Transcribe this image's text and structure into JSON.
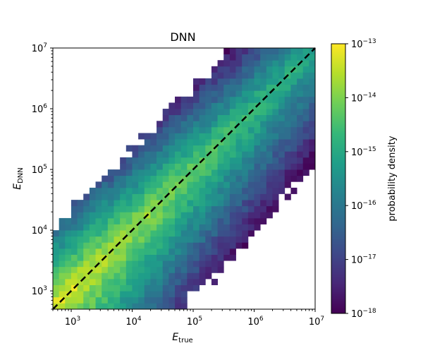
{
  "chart_data": {
    "type": "heatmap",
    "title": "DNN",
    "xlabel": {
      "main": "E",
      "sub": "true"
    },
    "ylabel": {
      "main": "E",
      "sub": "DNN"
    },
    "scale": "log",
    "xlim": [
      500,
      10000000
    ],
    "ylim": [
      500,
      10000000
    ],
    "x_ticks": [
      {
        "value": 1000,
        "base": "10",
        "exp": "3"
      },
      {
        "value": 10000,
        "base": "10",
        "exp": "4"
      },
      {
        "value": 100000,
        "base": "10",
        "exp": "5"
      },
      {
        "value": 1000000,
        "base": "10",
        "exp": "6"
      },
      {
        "value": 10000000,
        "base": "10",
        "exp": "7"
      }
    ],
    "y_ticks": [
      {
        "value": 1000,
        "base": "10",
        "exp": "3"
      },
      {
        "value": 10000,
        "base": "10",
        "exp": "4"
      },
      {
        "value": 100000,
        "base": "10",
        "exp": "5"
      },
      {
        "value": 1000000,
        "base": "10",
        "exp": "6"
      },
      {
        "value": 10000000,
        "base": "10",
        "exp": "7"
      }
    ],
    "bins": 43,
    "diagonal": {
      "style": "dashed",
      "color": "#000000",
      "from": [
        500,
        500
      ],
      "to": [
        10000000,
        10000000
      ]
    },
    "density_model": {
      "peak_log10": -13.15,
      "upper_slope_per_decade": 2.4,
      "lower_slope_per_decade": 1.55,
      "energy_slope_per_decade": 0.45,
      "upper_cutoff_decades": 1.35,
      "lower_cutoff_decades": 2.1
    },
    "colorbar": {
      "label": "probability density",
      "scale": "log",
      "range": [
        1e-18,
        1e-13
      ],
      "ticks": [
        {
          "value": 1e-13,
          "base": "10",
          "exp": "−13"
        },
        {
          "value": 1e-14,
          "base": "10",
          "exp": "−14"
        },
        {
          "value": 1e-15,
          "base": "10",
          "exp": "−15"
        },
        {
          "value": 1e-16,
          "base": "10",
          "exp": "−16"
        },
        {
          "value": 1e-17,
          "base": "10",
          "exp": "−17"
        },
        {
          "value": 1e-18,
          "base": "10",
          "exp": "−18"
        }
      ],
      "colormap": [
        "#440154",
        "#482878",
        "#3e4989",
        "#31688e",
        "#26828e",
        "#1f9e89",
        "#35b779",
        "#6ece58",
        "#b5de2b",
        "#fde725"
      ]
    }
  }
}
